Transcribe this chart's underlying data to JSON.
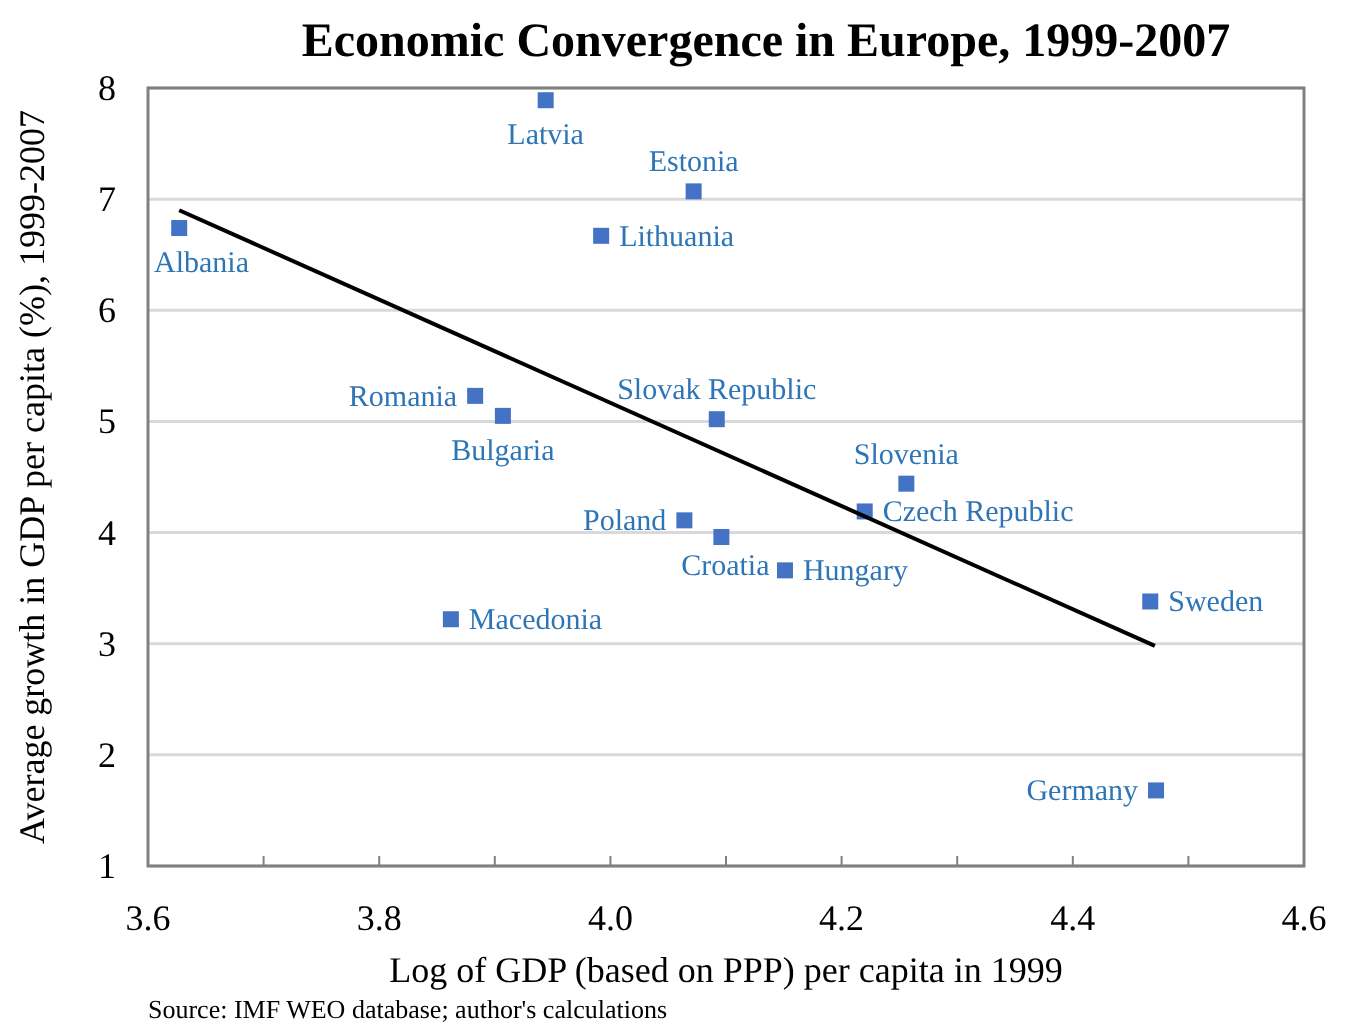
{
  "chart_data": {
    "type": "scatter",
    "title": "Economic Convergence in Europe, 1999-2007",
    "xlabel": "Log of GDP (based on PPP) per capita in 1999",
    "ylabel": "Average growth in GDP per capita (%), 1999-2007",
    "xlim": [
      3.6,
      4.6
    ],
    "xticks": [
      {
        "value": 3.6,
        "label": "3.6"
      },
      {
        "value": 3.7,
        "label": null
      },
      {
        "value": 3.8,
        "label": "3.8"
      },
      {
        "value": 3.9,
        "label": null
      },
      {
        "value": 4.0,
        "label": "4.0"
      },
      {
        "value": 4.1,
        "label": null
      },
      {
        "value": 4.2,
        "label": "4.2"
      },
      {
        "value": 4.3,
        "label": null
      },
      {
        "value": 4.4,
        "label": "4.4"
      },
      {
        "value": 4.5,
        "label": null
      },
      {
        "value": 4.6,
        "label": "4.6"
      }
    ],
    "ylim": [
      1,
      8
    ],
    "yticks": [
      1,
      2,
      3,
      4,
      5,
      6,
      7,
      8
    ],
    "grid": "y",
    "series": [
      {
        "marker": "square",
        "color": "#4472c4",
        "x": [
          3.944,
          4.072,
          3.992,
          3.627,
          3.883,
          3.907,
          4.092,
          4.256,
          4.22,
          4.064,
          4.096,
          4.151,
          4.467,
          4.472,
          3.862
        ],
        "values": [
          7.89,
          7.07,
          6.67,
          6.74,
          5.23,
          5.05,
          5.02,
          4.44,
          4.19,
          4.11,
          3.96,
          3.66,
          3.38,
          1.68,
          3.22
        ]
      },
      {
        "type": "line",
        "color": "#000000",
        "x": [
          3.627,
          4.471
        ],
        "values": [
          6.9,
          2.98
        ]
      }
    ],
    "annotations": [
      {
        "text": "Latvia",
        "x": 3.944,
        "y": 7.89
      },
      {
        "text": "Estonia",
        "x": 4.072,
        "y": 7.07
      },
      {
        "text": "Lithuania",
        "x": 3.992,
        "y": 6.67
      },
      {
        "text": "Albania",
        "x": 3.627,
        "y": 6.74
      },
      {
        "text": "Romania",
        "x": 3.883,
        "y": 5.23
      },
      {
        "text": "Bulgaria",
        "x": 3.907,
        "y": 5.05
      },
      {
        "text": "Slovak Republic",
        "x": 4.092,
        "y": 5.02
      },
      {
        "text": "Slovenia",
        "x": 4.256,
        "y": 4.44
      },
      {
        "text": "Czech Republic",
        "x": 4.22,
        "y": 4.19
      },
      {
        "text": "Poland",
        "x": 4.064,
        "y": 4.11
      },
      {
        "text": "Croatia",
        "x": 4.096,
        "y": 3.96
      },
      {
        "text": "Hungary",
        "x": 4.151,
        "y": 3.66
      },
      {
        "text": "Sweden",
        "x": 4.467,
        "y": 3.38
      },
      {
        "text": "Germany",
        "x": 4.472,
        "y": 1.68
      },
      {
        "text": "Macedonia",
        "x": 3.862,
        "y": 3.22
      },
      "Source: IMF WEO database; author's calculations"
    ]
  }
}
